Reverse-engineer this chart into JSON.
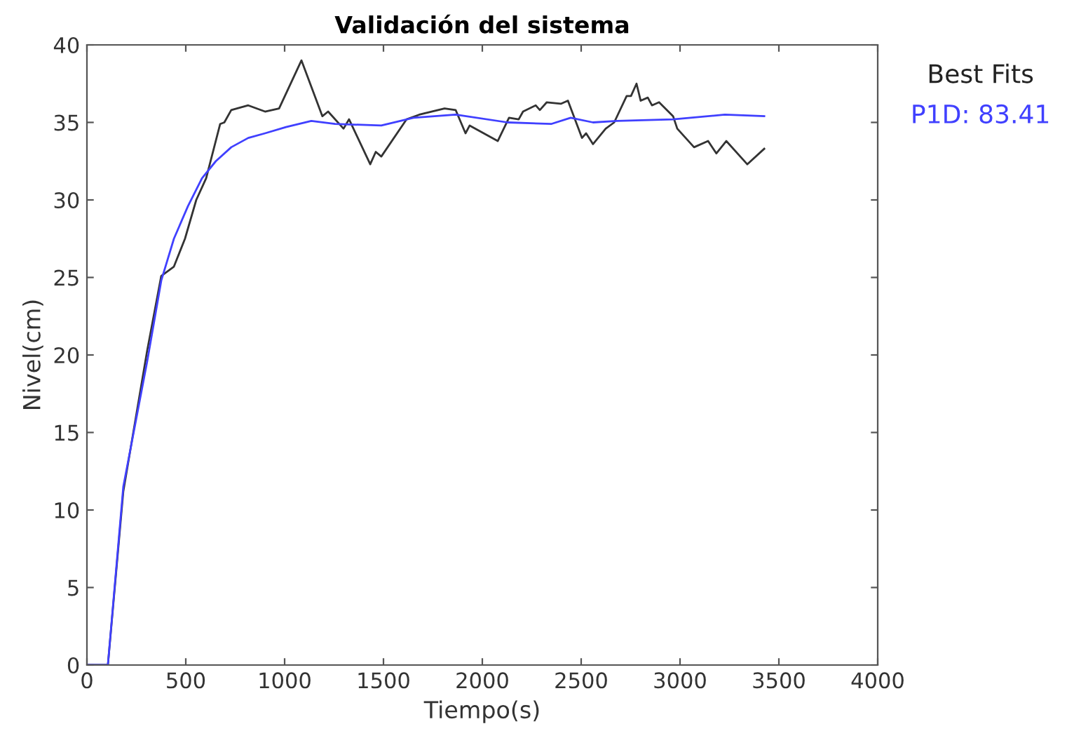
{
  "chart_data": {
    "type": "line",
    "title": "Validación del sistema",
    "xlabel": "Tiempo(s)",
    "ylabel": "Nivel(cm)",
    "legend_title": "Best Fits",
    "legend": "right",
    "grid": false,
    "marker": "none",
    "line_style": "solid",
    "xlim": [
      0,
      4000
    ],
    "xticks": [
      0,
      500,
      1000,
      1500,
      2000,
      2500,
      3000,
      3500,
      4000
    ],
    "ylim": [
      0,
      40
    ],
    "yticks": [
      0,
      5,
      10,
      15,
      20,
      25,
      30,
      35,
      40
    ],
    "series": [
      {
        "color": "#333333",
        "x": [
          0,
          106,
          184,
          305,
          376,
          440,
          496,
          553,
          603,
          674,
          695,
          730,
          816,
          901,
          972,
          1085,
          1191,
          1220,
          1298,
          1326,
          1433,
          1461,
          1489,
          1617,
          1681,
          1809,
          1865,
          1915,
          1936,
          2078,
          2135,
          2184,
          2206,
          2270,
          2291,
          2326,
          2397,
          2433,
          2504,
          2525,
          2560,
          2624,
          2667,
          2730,
          2752,
          2780,
          2801,
          2837,
          2858,
          2894,
          2965,
          2986,
          3071,
          3142,
          3184,
          3234,
          3340,
          3426
        ],
        "values": [
          0,
          0,
          11.2,
          20.3,
          25.1,
          25.7,
          27.5,
          30,
          31.4,
          34.9,
          35,
          35.8,
          36.1,
          35.7,
          35.9,
          39,
          35.4,
          35.7,
          34.6,
          35.2,
          32.3,
          33.1,
          32.8,
          35.2,
          35.5,
          35.9,
          35.8,
          34.3,
          34.8,
          33.8,
          35.3,
          35.2,
          35.7,
          36.1,
          35.8,
          36.3,
          36.2,
          36.4,
          34,
          34.3,
          33.6,
          34.6,
          35,
          36.7,
          36.7,
          37.5,
          36.4,
          36.6,
          36.1,
          36.3,
          35.4,
          34.6,
          33.4,
          33.8,
          33,
          33.8,
          32.3,
          33.3
        ]
      },
      {
        "name": "P1D: 83.41",
        "color": "#4040ff",
        "x": [
          0,
          106,
          184,
          305,
          376,
          440,
          511,
          582,
          652,
          730,
          816,
          901,
          1007,
          1135,
          1255,
          1489,
          1652,
          1865,
          2128,
          2348,
          2447,
          2560,
          2681,
          2965,
          3227,
          3426
        ],
        "values": [
          0,
          0,
          11.5,
          19.6,
          24.8,
          27.5,
          29.6,
          31.4,
          32.5,
          33.4,
          34,
          34.3,
          34.7,
          35.1,
          34.9,
          34.8,
          35.3,
          35.5,
          35,
          34.9,
          35.3,
          35,
          35.1,
          35.2,
          35.5,
          35.4
        ]
      }
    ]
  }
}
